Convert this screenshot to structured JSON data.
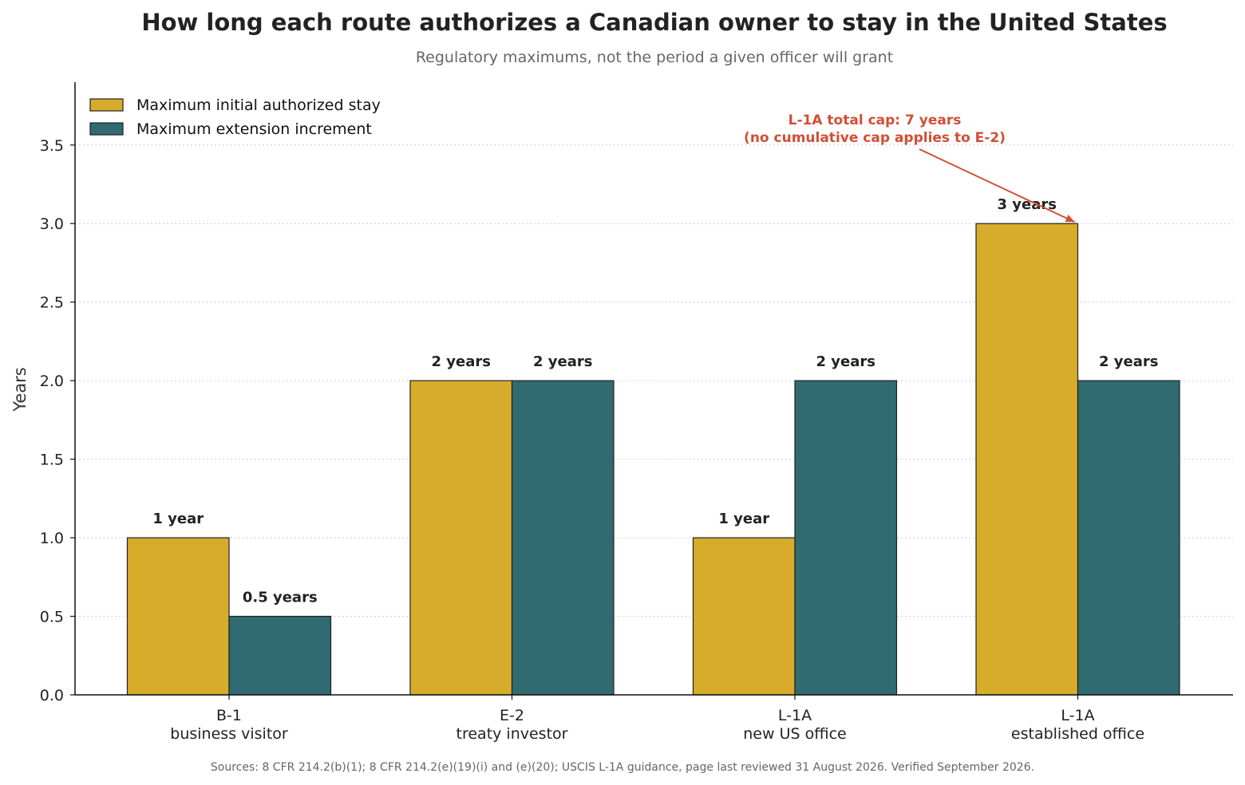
{
  "chart_data": {
    "type": "bar",
    "title": "How long each route authorizes a Canadian owner to stay in the United States",
    "subtitle": "Regulatory maximums, not the period a given officer will grant",
    "ylabel": "Years",
    "xlabel": "",
    "ylim": [
      0,
      3.9
    ],
    "yticks": [
      0.0,
      0.5,
      1.0,
      1.5,
      2.0,
      2.5,
      3.0,
      3.5
    ],
    "ytick_labels": [
      "0.0",
      "0.5",
      "1.0",
      "1.5",
      "2.0",
      "2.5",
      "3.0",
      "3.5"
    ],
    "grid": "horizontal dotted",
    "legend_position": "top-left",
    "categories": [
      [
        "B-1",
        "business visitor"
      ],
      [
        "E-2",
        "treaty investor"
      ],
      [
        "L-1A",
        "new US office"
      ],
      [
        "L-1A",
        "established office"
      ]
    ],
    "series": [
      {
        "name": "Maximum initial authorized stay",
        "color": "#D8AC2B",
        "values": [
          1,
          2,
          1,
          3
        ],
        "labels": [
          "1 year",
          "2 years",
          "1 year",
          "3 years"
        ]
      },
      {
        "name": "Maximum extension increment",
        "color": "#2F6B70",
        "values": [
          0.5,
          2,
          2,
          2
        ],
        "labels": [
          "0.5 years",
          "2 years",
          "2 years",
          "2 years"
        ]
      }
    ],
    "annotation": {
      "lines": [
        "L-1A total cap: 7 years",
        "(no cumulative cap applies to E-2)"
      ],
      "color": "#D04F35",
      "points_to_category": 3,
      "points_to_series": 0
    },
    "source": "Sources: 8 CFR 214.2(b)(1); 8 CFR 214.2(e)(19)(i) and (e)(20); USCIS L-1A guidance, page last reviewed 31 August 2026. Verified September 2026."
  }
}
